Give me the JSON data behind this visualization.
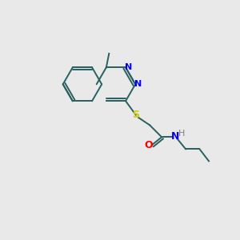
{
  "bg_color": "#e9e9e9",
  "bond_color": "#2a6060",
  "n_color": "#0000ff",
  "o_color": "#ff0000",
  "s_color": "#cccc00",
  "h_color": "#808080",
  "figsize": [
    3.0,
    3.0
  ],
  "dpi": 100,
  "xlim": [
    0,
    10
  ],
  "ylim": [
    0,
    10
  ],
  "bond_lw": 1.4
}
